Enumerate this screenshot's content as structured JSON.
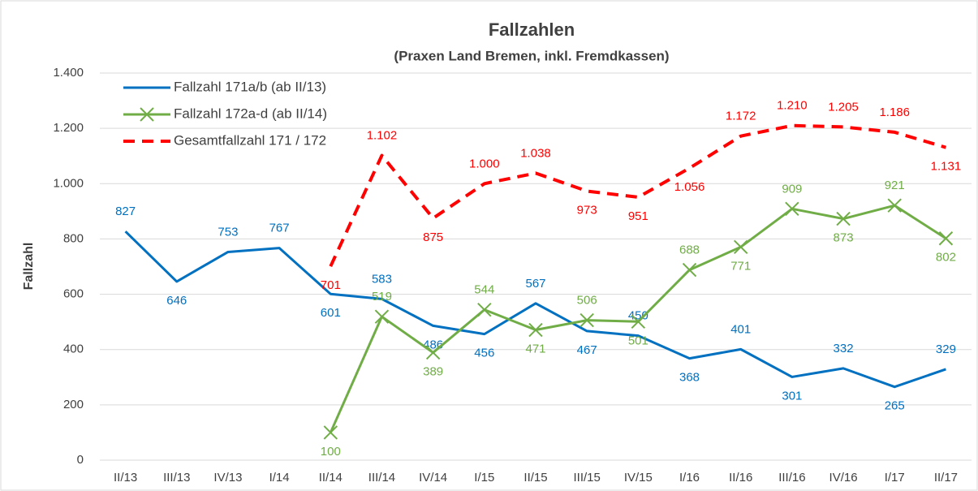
{
  "chart_data": {
    "type": "line",
    "title": "Fallzahlen",
    "subtitle": "(Praxen Land Bremen, inkl. Fremdkassen)",
    "y_label": "Fallzahl",
    "categories": [
      "II/13",
      "III/13",
      "IV/13",
      "I/14",
      "II/14",
      "III/14",
      "IV/14",
      "I/15",
      "II/15",
      "III/15",
      "IV/15",
      "I/16",
      "II/16",
      "III/16",
      "IV/16",
      "I/17",
      "II/17"
    ],
    "series": [
      {
        "name": "Fallzahl 171a/b (ab II/13)",
        "color": "#0070c0",
        "style": "solid",
        "marker": "none",
        "values": [
          827,
          646,
          753,
          767,
          601,
          583,
          486,
          456,
          567,
          467,
          450,
          368,
          401,
          301,
          332,
          265,
          329
        ]
      },
      {
        "name": "Fallzahl 172a-d (ab II/14)",
        "color": "#70ad47",
        "style": "solid",
        "marker": "x",
        "values": [
          null,
          null,
          null,
          null,
          100,
          519,
          389,
          544,
          471,
          506,
          501,
          688,
          771,
          909,
          873,
          921,
          802
        ]
      },
      {
        "name": "Gesamtfallzahl 171 / 172",
        "color": "#ff0000",
        "style": "dashed",
        "marker": "none",
        "values": [
          null,
          null,
          null,
          null,
          701,
          1102,
          875,
          1000,
          1038,
          973,
          951,
          1056,
          1172,
          1210,
          1205,
          1186,
          1131
        ],
        "value_labels": [
          null,
          null,
          null,
          null,
          "701",
          "1.102",
          "875",
          "1.000",
          "1.038",
          "973",
          "951",
          "1.056",
          "1.172",
          "1.210",
          "1.205",
          "1.186",
          "1.131"
        ]
      }
    ],
    "ylim": [
      0,
      1400
    ],
    "yticks": [
      0,
      200,
      400,
      600,
      800,
      {
        "value": 1000,
        "label": "1.000"
      },
      {
        "value": 1200,
        "label": "1.200"
      },
      {
        "value": 1400,
        "label": "1.400"
      }
    ],
    "grid": true,
    "legend": "top-left"
  }
}
